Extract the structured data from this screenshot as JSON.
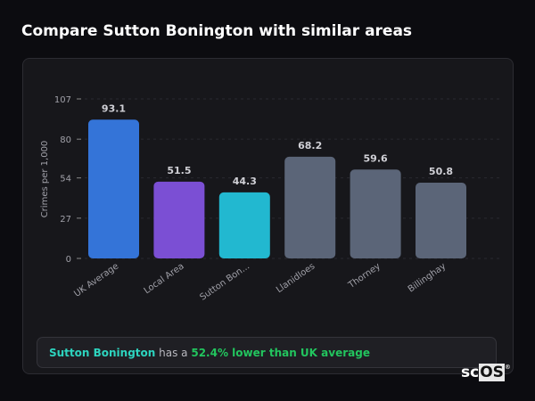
{
  "header": {
    "title": "Compare Sutton Bonington with similar areas"
  },
  "chart_data": {
    "type": "bar",
    "categories": [
      "UK Average",
      "Local Area",
      "Sutton Bon...",
      "Llanidloes",
      "Thorney",
      "Billinghay"
    ],
    "values": [
      93.1,
      51.5,
      44.3,
      68.2,
      59.6,
      50.8
    ],
    "value_labels": [
      "93.1",
      "51.5",
      "44.3",
      "68.2",
      "59.6",
      "50.8"
    ],
    "colors": [
      "#3474d8",
      "#7b4fd4",
      "#22b8d0",
      "#5b6578",
      "#5b6578",
      "#5b6578"
    ],
    "ylabel": "Crimes per 1,000",
    "xlabel": "",
    "ylim": [
      0,
      107
    ],
    "yticks": [
      0,
      27,
      54,
      80,
      107
    ],
    "grid": true
  },
  "summary": {
    "place": "Sutton Bonington",
    "middle": " has a ",
    "highlight": "52.4% lower than UK average"
  },
  "logo": {
    "text_a": "sc",
    "text_b": "OS",
    "mark": "®"
  }
}
